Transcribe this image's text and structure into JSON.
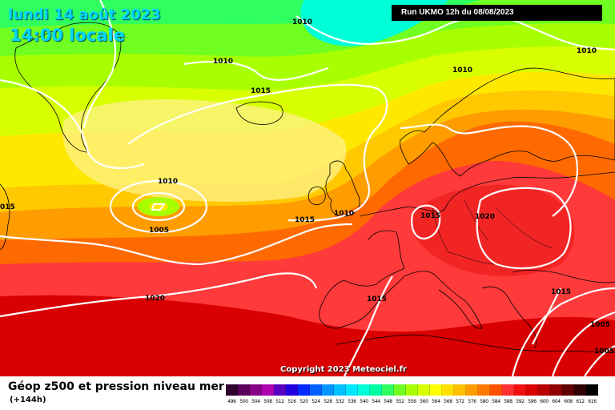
{
  "header": {
    "date": "lundi 14 août 2023",
    "time": "14:00 locale",
    "run": "Run UKMO 12h du 08/08/2023"
  },
  "copyright": "Copyright 2023 Meteociel.fr",
  "map": {
    "isobar_labels": {
      "l1": "1010",
      "l2": "1010",
      "l3": "1010",
      "l4": "1010",
      "l5": "1015",
      "l6": "1010",
      "l7": "1015",
      "l8": "1015",
      "l9": "1020",
      "l10": "015",
      "l11": "1005",
      "l12": "1015",
      "l13": "1020",
      "l14": "1015",
      "l15": "1005",
      "l16": "1005",
      "l17": "1010"
    },
    "isobar_color": "#ffffff",
    "coast_color": "#000000"
  },
  "legend": {
    "title": "Géop z500 et pression niveau mer",
    "subtitle": "(+144h)",
    "ticks": [
      "496",
      "500",
      "504",
      "508",
      "512",
      "516",
      "520",
      "524",
      "528",
      "532",
      "536",
      "540",
      "544",
      "548",
      "552",
      "556",
      "560",
      "564",
      "568",
      "572",
      "576",
      "580",
      "584",
      "588",
      "592",
      "596",
      "600",
      "604",
      "608",
      "612",
      "616"
    ],
    "colors": [
      "#300030",
      "#5a005a",
      "#860086",
      "#b000b0",
      "#5800c0",
      "#2000e0",
      "#0028ff",
      "#0060ff",
      "#0094ff",
      "#00c0ff",
      "#00e6ff",
      "#00ffd8",
      "#00ffa0",
      "#30ff60",
      "#70ff20",
      "#a8ff00",
      "#d8ff00",
      "#ffff00",
      "#ffe000",
      "#ffc000",
      "#ff9c00",
      "#ff7800",
      "#ff5000",
      "#ff3030",
      "#f01010",
      "#d80000",
      "#b80000",
      "#900000",
      "#600000",
      "#300000",
      "#000000"
    ]
  }
}
